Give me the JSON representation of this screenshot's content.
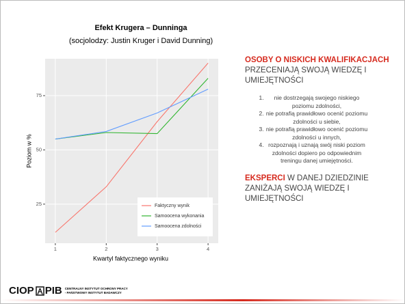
{
  "slide": {
    "lead_highlight": "OSOBY O NISKICH KWALIFIKACJACH",
    "lead_rest": " PRZECENIAJĄ SWOJĄ WIEDZĘ I UMIEJĘTNOŚCI",
    "items": [
      "nie dostrzegają swojego niskiego poziomu zdolności,",
      "nie potrafią prawidłowo ocenić poziomu zdolności u siebie,",
      "nie potrafią prawidłowo ocenić poziomu zdolności u innych,",
      "rozpoznają i uznają swój niski poziom zdolności dopiero po odpowiednim treningu danej umiejętności."
    ],
    "second_highlight": "EKSPERCI",
    "second_rest": " W DANEJ DZIEDZINIE ZANIŻAJĄ SWOJĄ WIEDZĘ I UMIEJĘTNOŚCI",
    "logo_left": "CIOP",
    "logo_right": "PIB",
    "institute_line1": "CENTRALNY INSTYTUT OCHRONY PRACY",
    "institute_line2": "- PAŃSTWOWY INSTYTUT BADAWCZY"
  },
  "chart_data": {
    "type": "line",
    "title": "Efekt Krugera – Dunninga",
    "subtitle": "(socjolodzy: Justin Kruger i David Dunning)",
    "x_label": "Kwartyl faktycznego wyniku",
    "y_label": "Poziom w %",
    "x": [
      1,
      2,
      3,
      4
    ],
    "series": [
      {
        "name": "Faktyczny wynik",
        "color": "#f8766d",
        "values": [
          12,
          33,
          63,
          90
        ]
      },
      {
        "name": "Samoocena wykonania",
        "color": "#2fb52f",
        "values": [
          55,
          58,
          57.5,
          83
        ]
      },
      {
        "name": "Samoocena zdolności",
        "color": "#619cff",
        "values": [
          55,
          58.5,
          67,
          78
        ]
      }
    ],
    "xlim": [
      0.8,
      4.2
    ],
    "xticks": [
      1,
      2,
      3,
      4
    ],
    "ylim": [
      7,
      92
    ],
    "yticks": [
      25,
      50,
      75
    ],
    "grid": true,
    "legend_position": "bottom-right"
  }
}
